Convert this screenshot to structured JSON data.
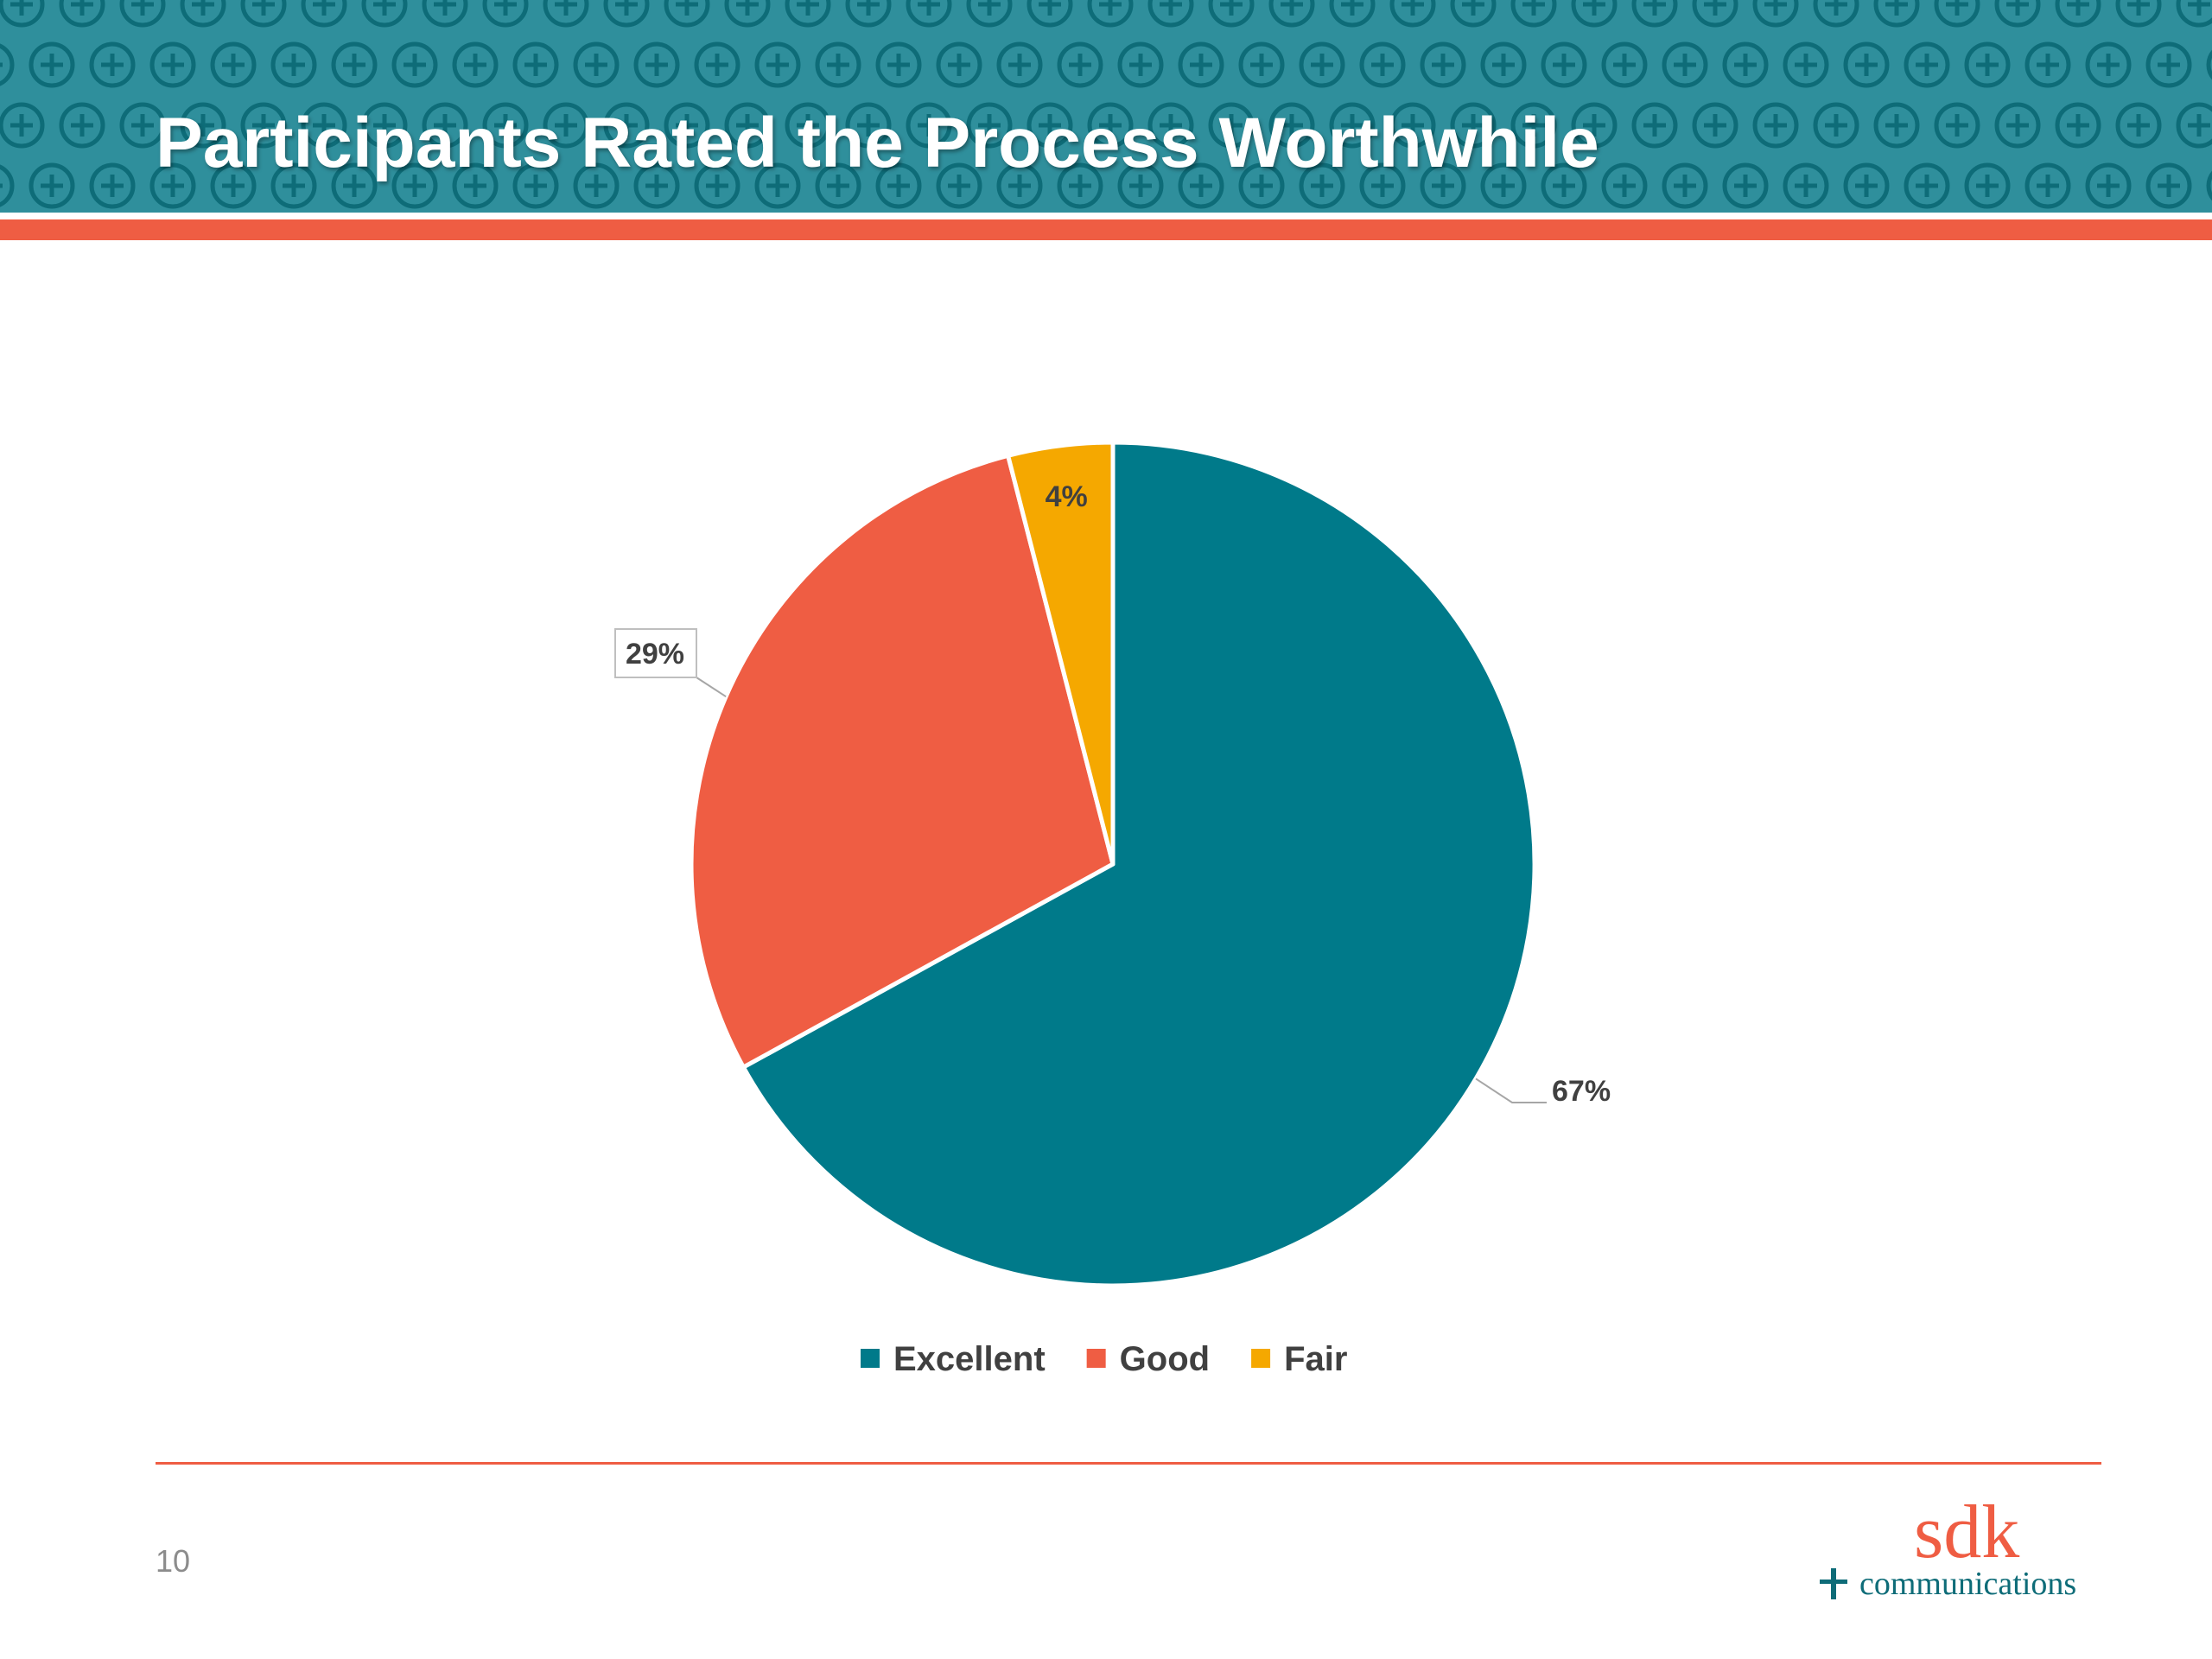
{
  "slide": {
    "title": "Participants Rated the Process Worthwhile",
    "page_number": "10"
  },
  "logo": {
    "name": "sdk",
    "subtitle": "communications"
  },
  "colors": {
    "banner": "#2f8f9c",
    "banner_pattern": "#0e6c78",
    "accent": "#ef5d43",
    "excellent": "#007a8a",
    "good": "#ef5d43",
    "fair": "#f5a800"
  },
  "chart_data": {
    "type": "pie",
    "title": "",
    "categories": [
      "Excellent",
      "Good",
      "Fair"
    ],
    "values": [
      67,
      29,
      4
    ],
    "data_labels": [
      "67%",
      "29%",
      "4%"
    ],
    "legend_position": "bottom",
    "start_angle_deg": 0,
    "direction": "clockwise"
  }
}
